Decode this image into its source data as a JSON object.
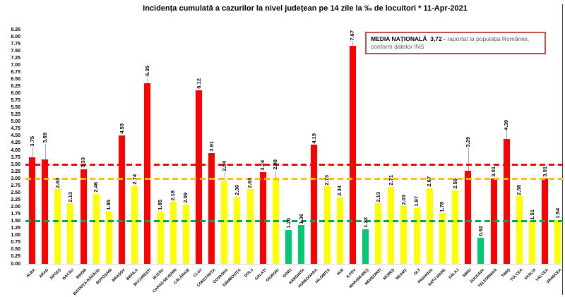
{
  "title": "Incidența cumulată a cazurilor la nivel județean pe 14 zile la ‰ de locuitori *  11-Apr-2021",
  "note_box": {
    "bold_text": "MEDIA NAȚIONALĂ  3,72 - ",
    "text": "raportat la populația României,",
    "line2": "conform datelor INS",
    "border_color": "#C0504D"
  },
  "chart_data": {
    "type": "bar",
    "title": "Incidența cumulată a cazurilor la nivel județean pe 14 zile la ‰ de locuitori *  11-Apr-2021",
    "xlabel": "",
    "ylabel": "",
    "ylim": [
      0,
      8.25
    ],
    "ytick_step": 0.25,
    "grid": false,
    "legend_position": "none",
    "categories": [
      "ALBA",
      "ARAD",
      "ARGEȘ",
      "BACĂU",
      "BIHOR",
      "BISTRIȚA-NĂSĂUD",
      "BOTOȘANI",
      "BRAȘOV",
      "BRĂILA",
      "BUCUREȘTI",
      "BUZĂU",
      "CARAȘ-SEVERIN",
      "CĂLĂRAȘI",
      "CLUJ",
      "CONSTANȚA",
      "COVASNA",
      "DÂMBOVIȚA",
      "DOLJ",
      "GALAȚI",
      "GIURGIU",
      "GORJ",
      "HARGHITA",
      "HUNEDOARA",
      "IALOMIȚA",
      "IAȘI",
      "ILFOV",
      "MARAMUREȘ",
      "MEHEDINȚI",
      "MUREȘ",
      "NEAMȚ",
      "OLT",
      "PRAHOVA",
      "SATU MARE",
      "SĂLAJ",
      "SIBIU",
      "SUCEAVA",
      "TELEORMAN",
      "TIMIȘ",
      "TULCEA",
      "VASLUI",
      "VÂLCEA",
      "VRANCEA"
    ],
    "values": [
      3.75,
      3.69,
      2.63,
      2.13,
      3.33,
      2.46,
      1.85,
      4.53,
      2.74,
      6.35,
      1.85,
      2.18,
      2.09,
      6.12,
      3.91,
      2.94,
      2.36,
      2.63,
      3.24,
      2.98,
      1.2,
      1.36,
      4.19,
      2.73,
      2.34,
      7.67,
      1.22,
      2.13,
      2.71,
      2.03,
      1.97,
      2.67,
      1.78,
      2.59,
      3.29,
      0.92,
      3.01,
      4.39,
      2.38,
      1.51,
      3.01,
      1.54
    ],
    "bar_color_rules": {
      "red_min": 3.0,
      "green_max": 1.5,
      "red": "#FF0000",
      "yellow": "#FFFF00",
      "green": "#00C873"
    },
    "thresholds": [
      {
        "name": "red-threshold",
        "value": 3.5,
        "color": "#FF0000"
      },
      {
        "name": "orange-threshold",
        "value": 3.0,
        "color": "#FFC000"
      },
      {
        "name": "green-threshold",
        "value": 1.5,
        "color": "#00A551"
      }
    ],
    "label_leaders": {
      "ALBA": 13,
      "ARAD": 21,
      "BUCUREȘTI": 9,
      "COVASNA": 11,
      "GIURGIU": 11,
      "ILFOV": 6,
      "SIBIU": 31,
      "TIMIȘ": 11
    }
  }
}
